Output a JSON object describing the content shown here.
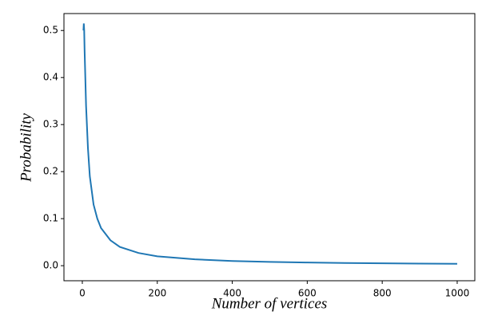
{
  "chart_data": {
    "type": "line",
    "x_label": "Number of vertices",
    "y_label": "Probability",
    "x": [
      3,
      4,
      5,
      6,
      8,
      10,
      15,
      20,
      30,
      40,
      50,
      75,
      100,
      150,
      200,
      300,
      400,
      500,
      600,
      700,
      800,
      900,
      1000
    ],
    "series": [
      {
        "name": "Probability",
        "color": "#1f77b4",
        "values": [
          0.5,
          0.515,
          0.5,
          0.46,
          0.4,
          0.34,
          0.25,
          0.19,
          0.13,
          0.1,
          0.08,
          0.054,
          0.04,
          0.027,
          0.02,
          0.0135,
          0.01,
          0.008,
          0.0068,
          0.0058,
          0.005,
          0.0045,
          0.004
        ]
      }
    ],
    "xlim": [
      -49,
      1047
    ],
    "ylim": [
      -0.032,
      0.536
    ],
    "xticks": [
      0,
      200,
      400,
      600,
      800,
      1000
    ],
    "yticks": [
      {
        "value": 0,
        "label": "0.0"
      },
      0.1,
      0.2,
      0.3,
      0.4,
      0.5
    ]
  }
}
